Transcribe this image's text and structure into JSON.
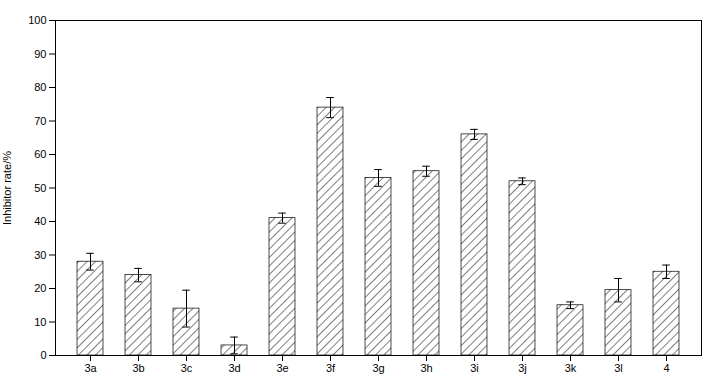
{
  "chart_data": {
    "type": "bar",
    "categories": [
      "3a",
      "3b",
      "3c",
      "3d",
      "3e",
      "3f",
      "3g",
      "3h",
      "3i",
      "3j",
      "3k",
      "3l",
      "4"
    ],
    "values": [
      28,
      24,
      14,
      3,
      41,
      74,
      53,
      55,
      66,
      52,
      15,
      19.5,
      25
    ],
    "errors": [
      2.5,
      2.0,
      5.5,
      2.5,
      1.5,
      3.0,
      2.5,
      1.5,
      1.5,
      1.0,
      1.0,
      3.5,
      2.0
    ],
    "ylabel": "Inhibitor rate/%",
    "ylim": [
      0,
      100
    ],
    "yticks": [
      0,
      10,
      20,
      30,
      40,
      50,
      60,
      70,
      80,
      90,
      100
    ],
    "color": "#ffffff",
    "grid": false
  }
}
